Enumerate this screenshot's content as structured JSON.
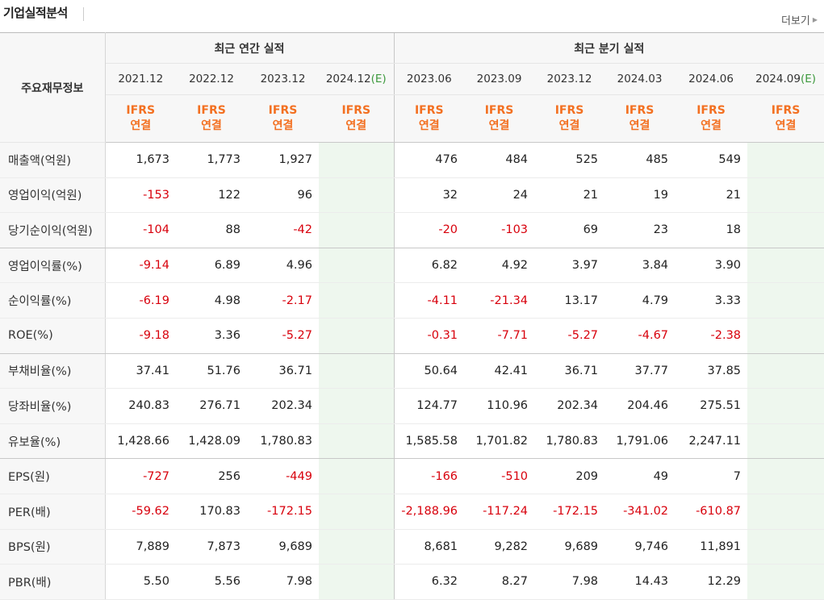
{
  "section_title": "기업실적분석",
  "more_label": "더보기",
  "row_header": "주요재무정보",
  "groups": {
    "annual": "최근 연간 실적",
    "quarterly": "최근 분기 실적"
  },
  "annual_periods": [
    "2021.12",
    "2022.12",
    "2023.12",
    "2024.12"
  ],
  "quarter_periods": [
    "2023.06",
    "2023.09",
    "2023.12",
    "2024.03",
    "2024.06",
    "2024.09"
  ],
  "estimate_mark": "(E)",
  "basis": {
    "line1": "IFRS",
    "line2": "연결"
  },
  "rows": [
    {
      "label": "매출액(억원)",
      "values": [
        "1,673",
        "1,773",
        "1,927",
        "",
        "476",
        "484",
        "525",
        "485",
        "549",
        ""
      ],
      "group_end": false
    },
    {
      "label": "영업이익(억원)",
      "values": [
        "-153",
        "122",
        "96",
        "",
        "32",
        "24",
        "21",
        "19",
        "21",
        ""
      ],
      "group_end": false
    },
    {
      "label": "당기순이익(억원)",
      "values": [
        "-104",
        "88",
        "-42",
        "",
        "-20",
        "-103",
        "69",
        "23",
        "18",
        ""
      ],
      "group_end": true
    },
    {
      "label": "영업이익률(%)",
      "values": [
        "-9.14",
        "6.89",
        "4.96",
        "",
        "6.82",
        "4.92",
        "3.97",
        "3.84",
        "3.90",
        ""
      ],
      "group_end": false
    },
    {
      "label": "순이익률(%)",
      "values": [
        "-6.19",
        "4.98",
        "-2.17",
        "",
        "-4.11",
        "-21.34",
        "13.17",
        "4.79",
        "3.33",
        ""
      ],
      "group_end": false
    },
    {
      "label": "ROE(%)",
      "values": [
        "-9.18",
        "3.36",
        "-5.27",
        "",
        "-0.31",
        "-7.71",
        "-5.27",
        "-4.67",
        "-2.38",
        ""
      ],
      "group_end": true
    },
    {
      "label": "부채비율(%)",
      "values": [
        "37.41",
        "51.76",
        "36.71",
        "",
        "50.64",
        "42.41",
        "36.71",
        "37.77",
        "37.85",
        ""
      ],
      "group_end": false
    },
    {
      "label": "당좌비율(%)",
      "values": [
        "240.83",
        "276.71",
        "202.34",
        "",
        "124.77",
        "110.96",
        "202.34",
        "204.46",
        "275.51",
        ""
      ],
      "group_end": false
    },
    {
      "label": "유보율(%)",
      "values": [
        "1,428.66",
        "1,428.09",
        "1,780.83",
        "",
        "1,585.58",
        "1,701.82",
        "1,780.83",
        "1,791.06",
        "2,247.11",
        ""
      ],
      "group_end": true
    },
    {
      "label": "EPS(원)",
      "values": [
        "-727",
        "256",
        "-449",
        "",
        "-166",
        "-510",
        "209",
        "49",
        "7",
        ""
      ],
      "group_end": false
    },
    {
      "label": "PER(배)",
      "values": [
        "-59.62",
        "170.83",
        "-172.15",
        "",
        "-2,188.96",
        "-117.24",
        "-172.15",
        "-341.02",
        "-610.87",
        ""
      ],
      "group_end": false
    },
    {
      "label": "BPS(원)",
      "values": [
        "7,889",
        "7,873",
        "9,689",
        "",
        "8,681",
        "9,282",
        "9,689",
        "9,746",
        "11,891",
        ""
      ],
      "group_end": false
    },
    {
      "label": "PBR(배)",
      "values": [
        "5.50",
        "5.56",
        "7.98",
        "",
        "6.32",
        "8.27",
        "7.98",
        "14.43",
        "12.29",
        ""
      ],
      "group_end": false
    }
  ],
  "colors": {
    "negative": "#d8000c",
    "ifrs": "#f37021",
    "estimate_bg": "#eef7ee",
    "estimate_mark": "#3e9a3e"
  }
}
